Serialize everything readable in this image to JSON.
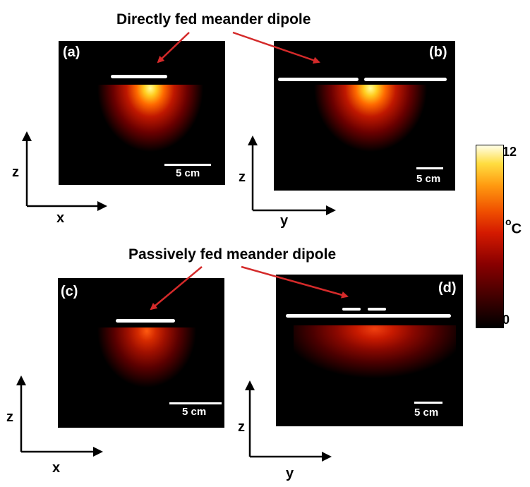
{
  "headings": {
    "top": "Directly fed meander dipole",
    "bottom": "Passively fed meander dipole"
  },
  "panels": {
    "a": {
      "label": "(a)",
      "scale": "5 cm",
      "axis_h": "x",
      "axis_v": "z"
    },
    "b": {
      "label": "(b)",
      "scale": "5 cm",
      "axis_h": "y",
      "axis_v": "z"
    },
    "c": {
      "label": "(c)",
      "scale": "5 cm",
      "axis_h": "x",
      "axis_v": "z"
    },
    "d": {
      "label": "(d)",
      "scale": "5 cm",
      "axis_h": "y",
      "axis_v": "z"
    }
  },
  "colorbar": {
    "max": "12",
    "min": "0",
    "unit_sup": "o",
    "unit": "C",
    "colormap": [
      "#000000",
      "#8a0000",
      "#d41a00",
      "#ff9a10",
      "#ffffe8"
    ]
  },
  "colors": {
    "arrow": "#d42a2a",
    "panel_bg": "#000000"
  }
}
